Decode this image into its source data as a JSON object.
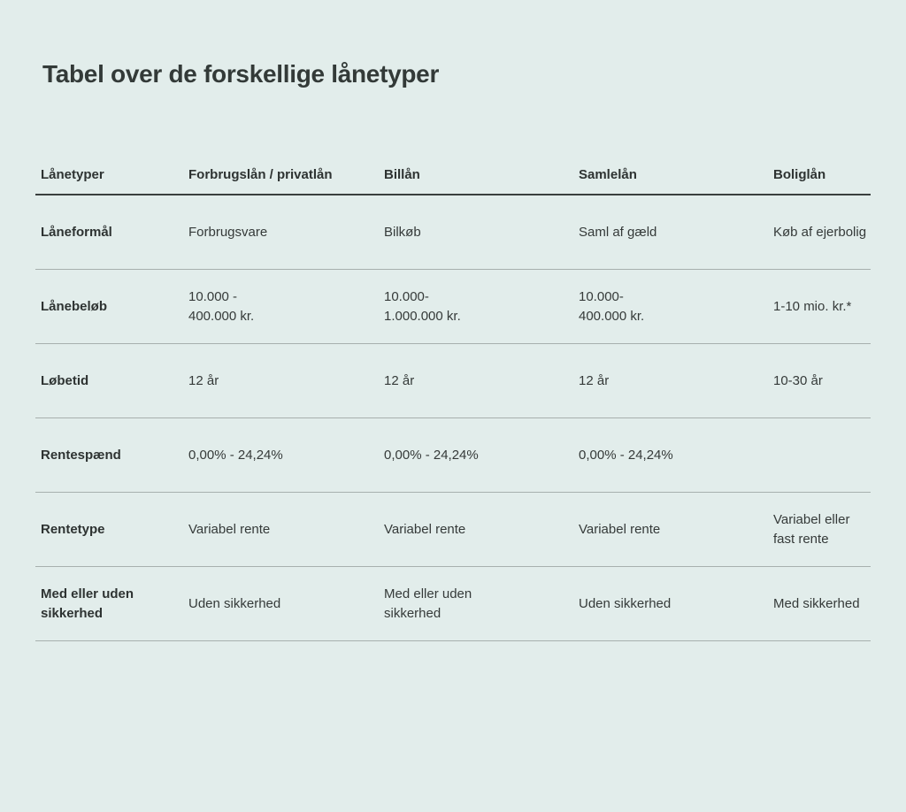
{
  "title": "Tabel over de forskellige lånetyper",
  "table": {
    "headers": [
      "Lånetyper",
      "Forbrugslån / privatlån",
      "Billån",
      "Samlelån",
      "Boliglån"
    ],
    "rows": [
      [
        "Låneformål",
        "Forbrugsvare",
        "Bilkøb",
        "Saml af gæld",
        "Køb af ejerbolig"
      ],
      [
        "Lånebeløb",
        "10.000 -\n400.000 kr.",
        "10.000-\n1.000.000 kr.",
        "10.000-\n400.000 kr.",
        "1-10 mio. kr.*"
      ],
      [
        "Løbetid",
        "12 år",
        "12 år",
        "12 år",
        "10-30 år"
      ],
      [
        "Rentespænd",
        "0,00% - 24,24%",
        "0,00% - 24,24%",
        "0,00% - 24,24%",
        ""
      ],
      [
        "Rentetype",
        "Variabel rente",
        "Variabel rente",
        "Variabel rente",
        "Variabel eller\nfast rente"
      ],
      [
        "Med eller uden\nsikkerhed",
        "Uden sikkerhed",
        "Med eller uden\nsikkerhed",
        "Uden sikkerhed",
        "Med sikkerhed"
      ]
    ]
  }
}
